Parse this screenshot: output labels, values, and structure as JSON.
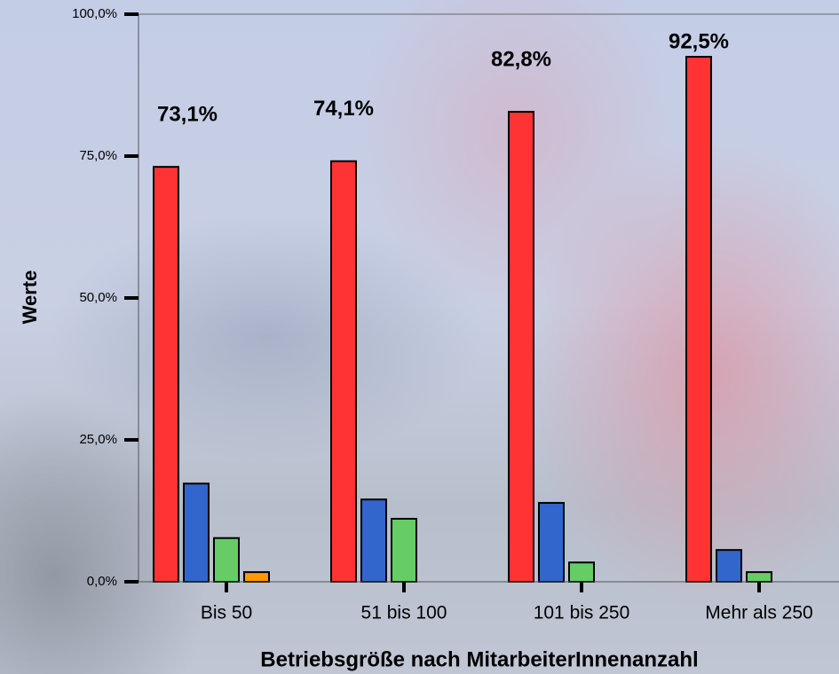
{
  "chart_data": {
    "type": "bar",
    "x_label": "Betriebsgröße nach MitarbeiterInnenanzahl",
    "y_label": "Werte",
    "categories": [
      "Bis 50",
      "51 bis 100",
      "101 bis 250",
      "Mehr als 250"
    ],
    "series": [
      {
        "color": "#ff3333",
        "values": [
          73.1,
          74.1,
          82.8,
          92.5
        ],
        "value_labels": [
          "73,1%",
          "74,1%",
          "82,8%",
          "92,5%"
        ]
      },
      {
        "color": "#3366cc",
        "values": [
          17.3,
          14.5,
          13.9,
          5.6
        ]
      },
      {
        "color": "#66cc66",
        "values": [
          7.7,
          11.1,
          3.4,
          1.7
        ]
      },
      {
        "color": "#ff9900",
        "values": [
          1.7,
          null,
          null,
          null
        ]
      }
    ],
    "ylim": [
      0,
      100
    ],
    "yticks": [
      {
        "value": 0,
        "label": "0,0%"
      },
      {
        "value": 25,
        "label": "25,0%"
      },
      {
        "value": 50,
        "label": "50,0%"
      },
      {
        "value": 75,
        "label": "75,0%"
      },
      {
        "value": 100,
        "label": "100,0%"
      }
    ]
  }
}
